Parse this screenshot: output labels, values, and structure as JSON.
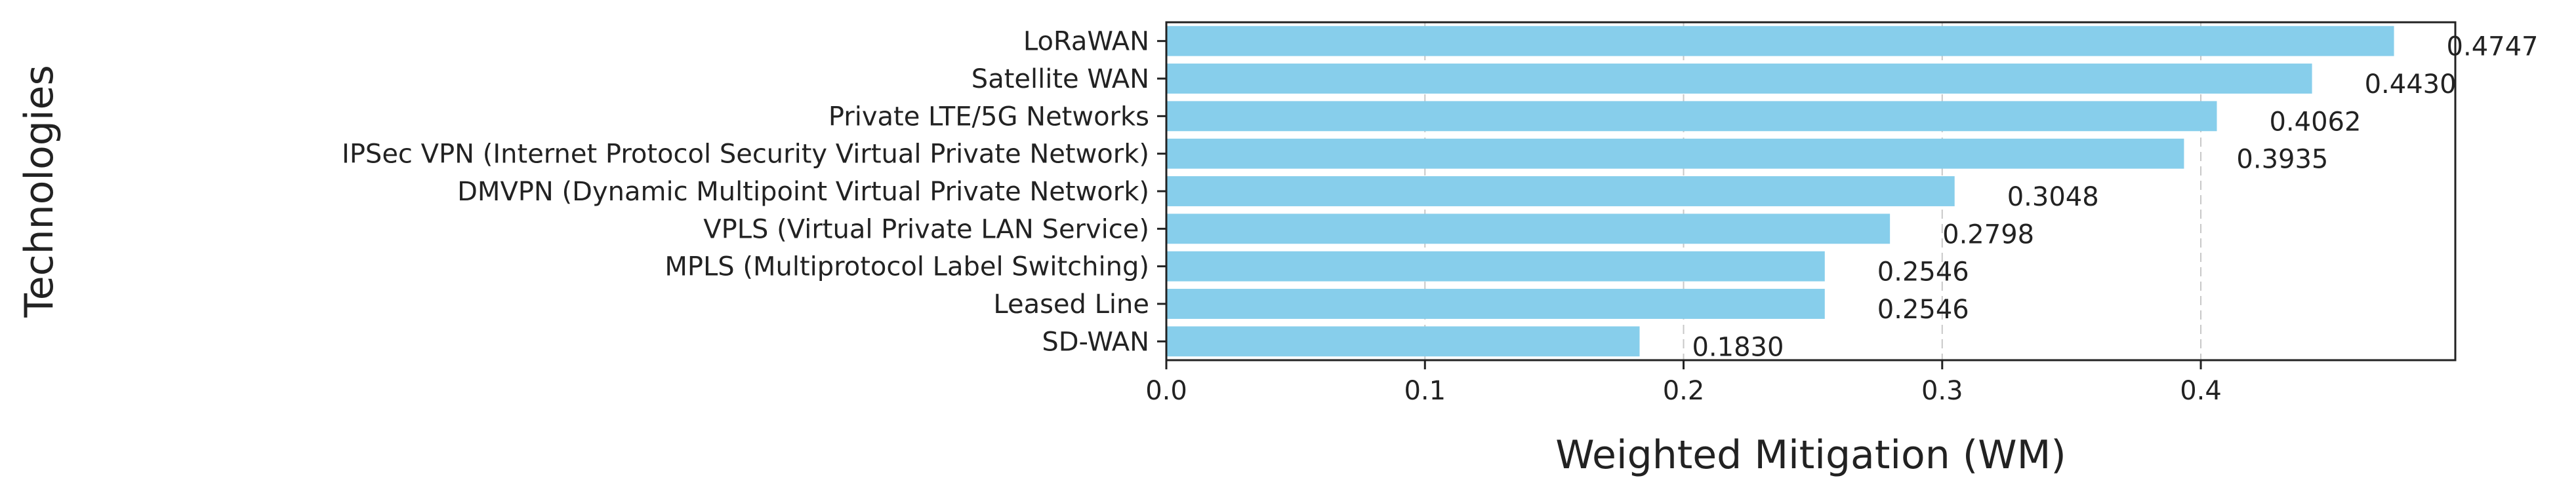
{
  "chart_data": {
    "type": "bar",
    "orientation": "horizontal",
    "categories": [
      "LoRaWAN",
      "Satellite WAN",
      "Private LTE/5G Networks",
      "IPSec VPN (Internet Protocol Security Virtual Private Network)",
      "DMVPN (Dynamic Multipoint Virtual Private Network)",
      "VPLS (Virtual Private LAN Service)",
      "MPLS (Multiprotocol Label Switching)",
      "Leased Line",
      "SD-WAN"
    ],
    "values": [
      0.4747,
      0.443,
      0.4062,
      0.3935,
      0.3048,
      0.2798,
      0.2546,
      0.2546,
      0.183
    ],
    "value_labels": [
      "0.4747",
      "0.4430",
      "0.4062",
      "0.3935",
      "0.3048",
      "0.2798",
      "0.2546",
      "0.2546",
      "0.1830"
    ],
    "xlabel": "Weighted Mitigation (WM)",
    "ylabel": "Technologies",
    "xlim": [
      0,
      0.4984
    ],
    "x_ticks": [
      0.0,
      0.1,
      0.2,
      0.3,
      0.4
    ],
    "x_tick_labels": [
      "0.0",
      "0.1",
      "0.2",
      "0.3",
      "0.4"
    ],
    "grid": "vertical dashed",
    "bar_color": "#87CEEB"
  }
}
